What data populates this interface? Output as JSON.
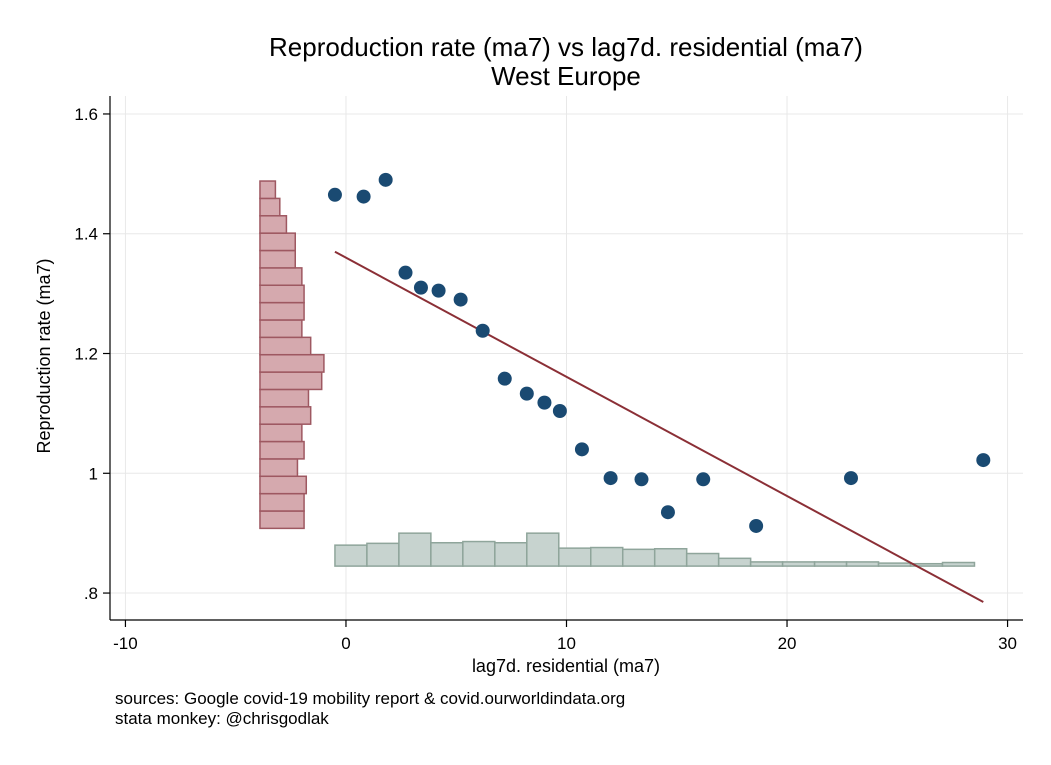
{
  "chart_data": {
    "type": "scatter",
    "title": "Reproduction rate (ma7) vs lag7d. residential (ma7)",
    "subtitle": "West Europe",
    "xlabel": "lag7d. residential (ma7)",
    "ylabel": "Reproduction rate (ma7)",
    "xlim": [
      -10.7,
      30.7
    ],
    "ylim": [
      0.755,
      1.63
    ],
    "xticks": [
      -10,
      0,
      10,
      20,
      30
    ],
    "xtick_labels": [
      "-10",
      "0",
      "10",
      "20",
      "30"
    ],
    "yticks": [
      0.8,
      1.0,
      1.2,
      1.4,
      1.6
    ],
    "ytick_labels": [
      ".8",
      "1",
      "1.2",
      "1.4",
      "1.6"
    ],
    "grid": true,
    "points": [
      {
        "x": -0.5,
        "y": 1.465
      },
      {
        "x": 0.8,
        "y": 1.462
      },
      {
        "x": 1.8,
        "y": 1.49
      },
      {
        "x": 2.7,
        "y": 1.335
      },
      {
        "x": 3.4,
        "y": 1.31
      },
      {
        "x": 4.2,
        "y": 1.305
      },
      {
        "x": 5.2,
        "y": 1.29
      },
      {
        "x": 6.2,
        "y": 1.238
      },
      {
        "x": 7.2,
        "y": 1.158
      },
      {
        "x": 8.2,
        "y": 1.133
      },
      {
        "x": 9.0,
        "y": 1.118
      },
      {
        "x": 9.7,
        "y": 1.104
      },
      {
        "x": 10.7,
        "y": 1.04
      },
      {
        "x": 12.0,
        "y": 0.992
      },
      {
        "x": 13.4,
        "y": 0.99
      },
      {
        "x": 14.6,
        "y": 0.935
      },
      {
        "x": 16.2,
        "y": 0.99
      },
      {
        "x": 18.6,
        "y": 0.912
      },
      {
        "x": 22.9,
        "y": 0.992
      },
      {
        "x": 28.9,
        "y": 1.022
      }
    ],
    "fit_line": {
      "x": [
        -0.5,
        28.9
      ],
      "y": [
        1.37,
        0.785
      ]
    },
    "x_histogram": {
      "bins": [
        -0.5,
        0.95,
        2.4,
        3.85,
        5.3,
        6.75,
        8.2,
        9.65,
        11.1,
        12.55,
        14.0,
        15.45,
        16.9,
        18.35,
        19.8,
        21.25,
        22.7,
        24.15,
        25.6,
        27.05,
        28.5
      ],
      "heights": [
        0.035,
        0.038,
        0.055,
        0.039,
        0.041,
        0.039,
        0.055,
        0.03,
        0.031,
        0.028,
        0.029,
        0.021,
        0.013,
        0.007,
        0.007,
        0.007,
        0.007,
        0.005,
        0.004,
        0.006
      ],
      "baseline": 0.845
    },
    "y_histogram": {
      "bins": [
        0.908,
        0.937,
        0.966,
        0.995,
        1.024,
        1.053,
        1.082,
        1.111,
        1.14,
        1.169,
        1.198,
        1.227,
        1.256,
        1.285,
        1.314,
        1.343,
        1.372,
        1.401,
        1.43,
        1.459,
        1.488
      ],
      "widths": [
        2.0,
        2.0,
        2.1,
        1.7,
        2.0,
        1.9,
        2.3,
        2.2,
        2.8,
        2.9,
        2.3,
        1.9,
        2.0,
        2.0,
        1.9,
        1.6,
        1.6,
        1.2,
        0.9,
        0.7
      ],
      "baseline": -3.9
    },
    "colors": {
      "points": "#1a4a72",
      "fit_line": "#8b2f36",
      "x_hist_fill": "#c7d3cf",
      "x_hist_stroke": "#8fa59b",
      "y_hist_fill": "#d5a9ae",
      "y_hist_stroke": "#9e5861",
      "grid": "#e8e8e8"
    }
  },
  "notes": {
    "line1": "sources: Google covid-19 mobility report & covid.ourworldindata.org",
    "line2": "stata monkey: @chrisgodlak"
  }
}
